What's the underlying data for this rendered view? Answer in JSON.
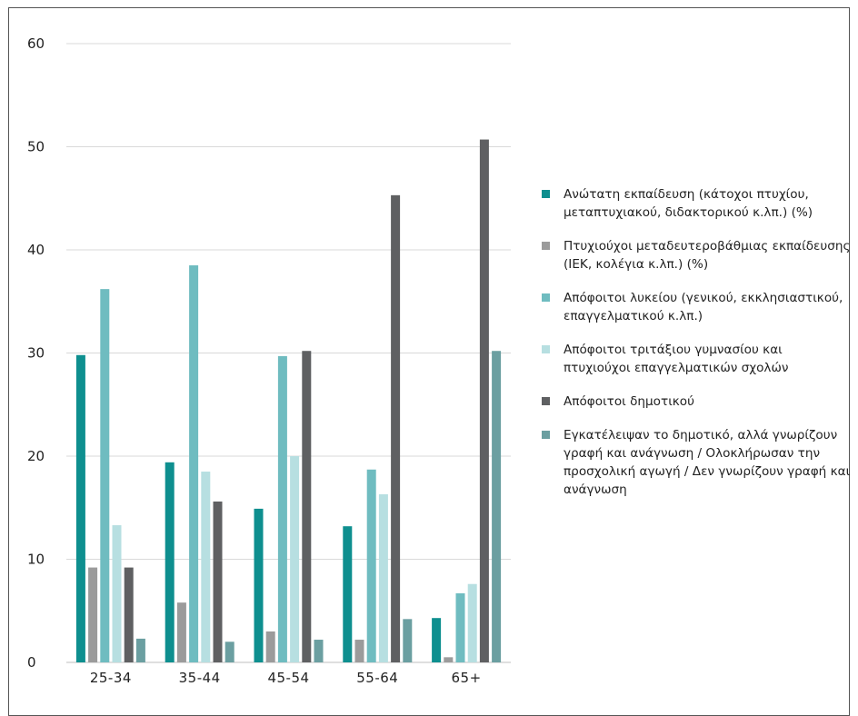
{
  "chart_data": {
    "type": "bar",
    "categories": [
      "25-34",
      "35-44",
      "45-54",
      "55-64",
      "65+"
    ],
    "ylim": [
      0,
      60
    ],
    "yticks": [
      0,
      10,
      20,
      30,
      40,
      50,
      60
    ],
    "grid": true,
    "legend_position": "right",
    "series": [
      {
        "name": "Ανώτατη εκπαίδευση (κάτοχοι πτυχίου, μεταπτυχιακού, διδακτορικού κ.λπ.) (%)",
        "color": "#0e8f8f",
        "values": [
          29.8,
          19.4,
          14.9,
          13.2,
          4.3
        ]
      },
      {
        "name": "Πτυχιούχοι μεταδευτεροβάθμιας εκπαίδευσης (ΙΕΚ, κολέγια κ.λπ.) (%)",
        "color": "#9b9b9b",
        "values": [
          9.2,
          5.8,
          3.0,
          2.2,
          0.5
        ]
      },
      {
        "name": "Απόφοιτοι λυκείου (γενικού, εκκλησιαστικού, επαγγελματικού κ.λπ.)",
        "color": "#6fbcc0",
        "values": [
          36.2,
          38.5,
          29.7,
          18.7,
          6.7
        ]
      },
      {
        "name": "Απόφοιτοι τριτάξιου γυμνασίου και πτυχιούχοι επαγγελματικών σχολών",
        "color": "#b7dfe1",
        "values": [
          13.3,
          18.5,
          20.0,
          16.3,
          7.6
        ]
      },
      {
        "name": "Απόφοιτοι δημοτικού",
        "color": "#5f6062",
        "values": [
          9.2,
          15.6,
          30.2,
          45.3,
          50.7
        ]
      },
      {
        "name": "Εγκατέλειψαν το δημοτικό, αλλά γνωρίζουν γραφή και ανάγνωση / Ολοκλήρωσαν την προσχολική αγωγή / Δεν γνωρίζουν γραφή και ανάγνωση",
        "color": "#6b9fa1",
        "values": [
          2.3,
          2.0,
          2.2,
          4.2,
          30.2
        ]
      }
    ]
  }
}
